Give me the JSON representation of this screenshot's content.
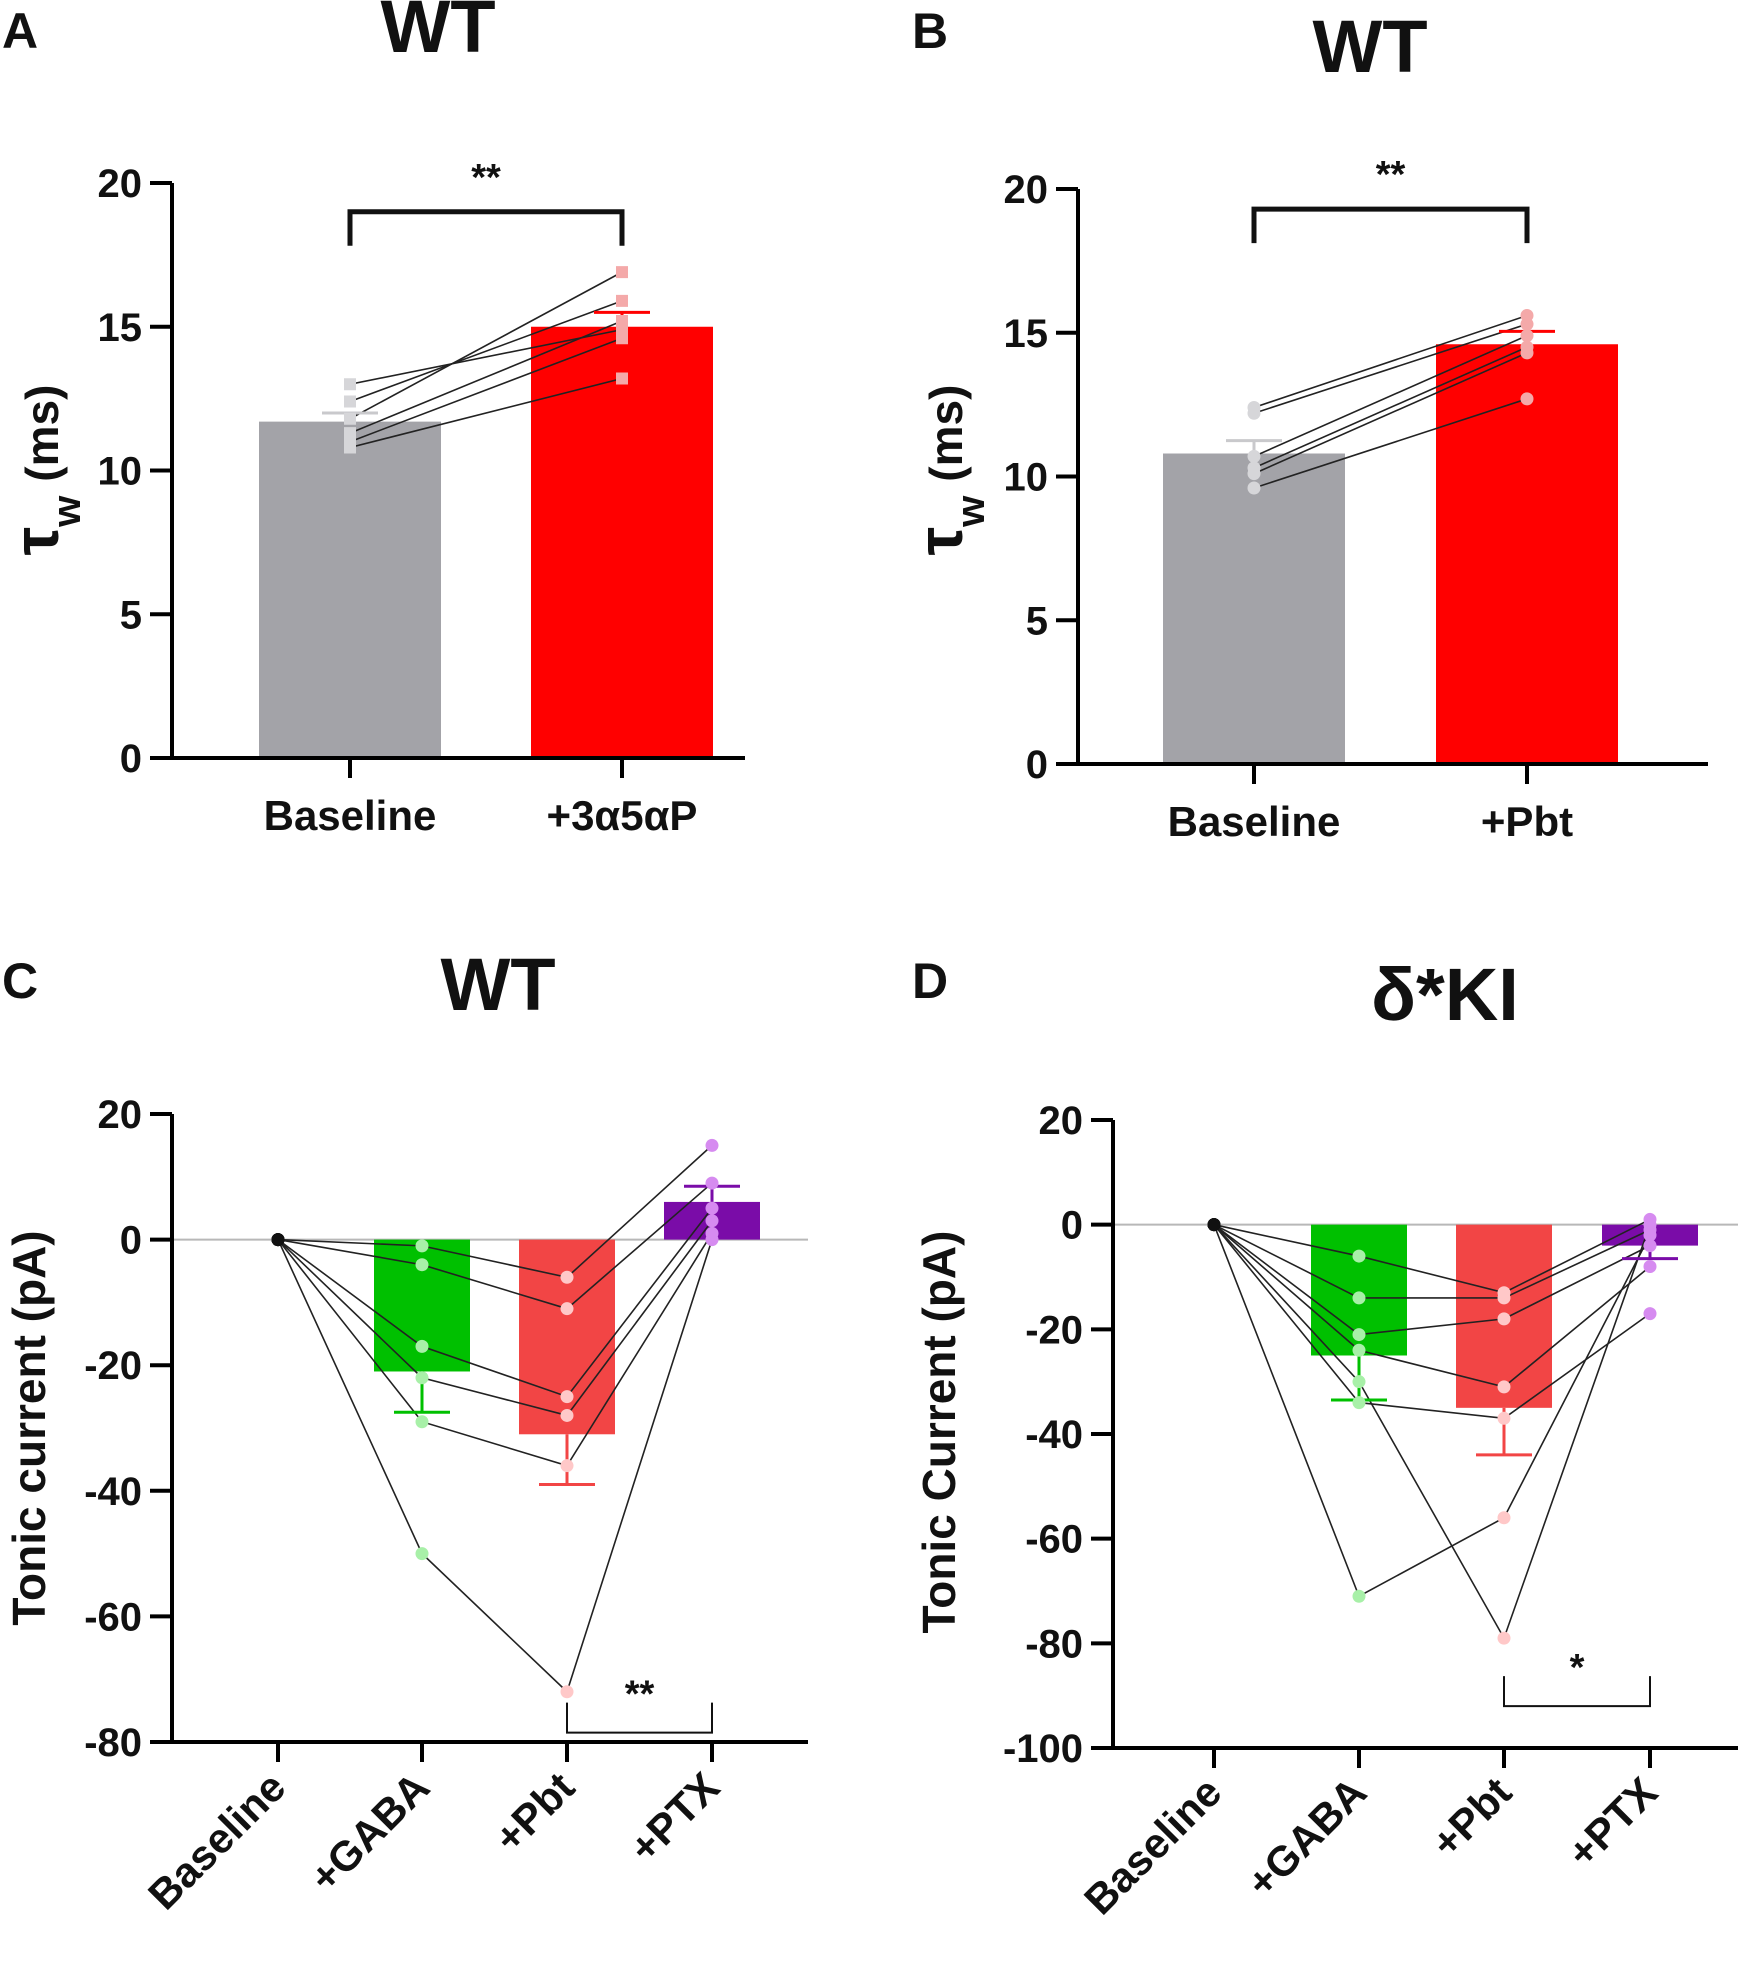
{
  "chart_data": [
    {
      "panel": "A",
      "type": "bar",
      "title": "WT",
      "ylabel_symbol": "τ",
      "ylabel_sub": "w",
      "ylabel_rest": "(ms)",
      "ylim": [
        0,
        20
      ],
      "yticks": [
        "0",
        "5",
        "10",
        "15",
        "20"
      ],
      "categories": [
        "Baseline",
        "+3α5αP"
      ],
      "values": [
        11.7,
        15.0
      ],
      "errors": [
        0.3,
        0.5
      ],
      "colors": [
        "#a3a3a8",
        "#ff0000"
      ],
      "point_colors": [
        "#d6d6d9",
        "#f4a9a9"
      ],
      "marker": "square",
      "paired": [
        [
          13.0,
          14.9
        ],
        [
          12.4,
          15.9
        ],
        [
          11.8,
          16.9
        ],
        [
          11.3,
          15.2
        ],
        [
          11.0,
          14.6
        ],
        [
          10.8,
          13.2
        ]
      ],
      "significance": [
        {
          "label": "**",
          "from": 0,
          "to": 1,
          "level": 19.0
        }
      ]
    },
    {
      "panel": "B",
      "type": "bar",
      "title": "WT",
      "ylabel_symbol": "τ",
      "ylabel_sub": "w",
      "ylabel_rest": "(ms)",
      "ylim": [
        0,
        20
      ],
      "yticks": [
        "0",
        "5",
        "10",
        "15",
        "20"
      ],
      "categories": [
        "Baseline",
        "+Pbt"
      ],
      "values": [
        10.8,
        14.6
      ],
      "errors": [
        0.45,
        0.45
      ],
      "colors": [
        "#a3a3a8",
        "#ff0000"
      ],
      "point_colors": [
        "#d6d6d9",
        "#f4a9a9"
      ],
      "marker": "circle",
      "paired": [
        [
          12.4,
          15.6
        ],
        [
          12.2,
          15.3
        ],
        [
          10.7,
          14.9
        ],
        [
          10.3,
          14.5
        ],
        [
          10.1,
          14.3
        ],
        [
          9.6,
          12.7
        ]
      ],
      "significance": [
        {
          "label": "**",
          "from": 0,
          "to": 1,
          "level": 19.3
        }
      ]
    },
    {
      "panel": "C",
      "type": "bar",
      "title": "WT",
      "ylabel": "Tonic current (pA)",
      "ylim": [
        -80,
        20
      ],
      "yticks": [
        "-80",
        "-60",
        "-40",
        "-20",
        "0",
        "20"
      ],
      "categories": [
        "Baseline",
        "+GABA",
        "+Pbt",
        "+PTX"
      ],
      "values": [
        0,
        -21,
        -31,
        6
      ],
      "errors": [
        0,
        6.5,
        8,
        2.5
      ],
      "colors": [
        "#000000",
        "#00c000",
        "#f24545",
        "#7a0ca8"
      ],
      "point_colors": [
        "#111111",
        "#a8f0a8",
        "#ffc8c8",
        "#d68bf0"
      ],
      "cells": [
        [
          0,
          -1,
          -6,
          15
        ],
        [
          0,
          -4,
          -11,
          9
        ],
        [
          0,
          -17,
          -25,
          5
        ],
        [
          0,
          -22,
          -28,
          3
        ],
        [
          0,
          -29,
          -36,
          1
        ],
        [
          0,
          -50,
          -72,
          0
        ]
      ],
      "significance": [
        {
          "label": "**",
          "from": 2,
          "to": 3,
          "level": -78.5
        }
      ]
    },
    {
      "panel": "D",
      "type": "bar",
      "title": "δ*KI",
      "ylabel": "Tonic Current (pA)",
      "ylim": [
        -100,
        20
      ],
      "yticks": [
        "-100",
        "-80",
        "-60",
        "-40",
        "-20",
        "0",
        "20"
      ],
      "categories": [
        "Baseline",
        "+GABA",
        "+Pbt",
        "+PTX"
      ],
      "values": [
        0,
        -25,
        -35,
        -4
      ],
      "errors": [
        0,
        8.5,
        9,
        2.5
      ],
      "colors": [
        "#000000",
        "#00c000",
        "#f24545",
        "#7a0ca8"
      ],
      "point_colors": [
        "#111111",
        "#a8f0a8",
        "#ffc8c8",
        "#d68bf0"
      ],
      "cells": [
        [
          0,
          -6,
          -13,
          1
        ],
        [
          0,
          -14,
          -14,
          -1
        ],
        [
          0,
          -21,
          -18,
          -4
        ],
        [
          0,
          -24,
          -31,
          -8
        ],
        [
          0,
          -34,
          -37,
          -17
        ],
        [
          0,
          -71,
          -56,
          -2
        ],
        [
          0,
          -30,
          -79,
          0
        ]
      ],
      "significance": [
        {
          "label": "*",
          "from": 2,
          "to": 3,
          "level": -92
        }
      ]
    }
  ]
}
